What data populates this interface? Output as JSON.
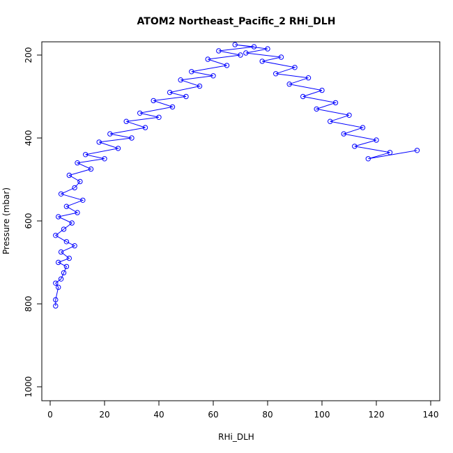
{
  "chart_data": {
    "type": "scatter",
    "title": "ATOM2 Northeast_Pacific_2 RHi_DLH",
    "xlabel": "RHi_DLH",
    "ylabel": "Pressure (mbar)",
    "xlim": [
      0,
      140
    ],
    "ylim": [
      1040,
      160
    ],
    "y_reversed": true,
    "grid": false,
    "legend": "none",
    "color": "#0000ff",
    "marker": "open-circle",
    "connected": true,
    "x_ticks": [
      0,
      20,
      40,
      60,
      80,
      100,
      120,
      140
    ],
    "x_tick_labels": [
      "0",
      "20",
      "40",
      "60",
      "80",
      "100",
      "120",
      "140"
    ],
    "y_ticks": [
      200,
      400,
      600,
      800,
      1000
    ],
    "y_tick_labels": [
      "200",
      "400",
      "600",
      "800",
      "1000"
    ],
    "series": [
      {
        "x": [
          2,
          2,
          3,
          2,
          4,
          5,
          6,
          3,
          7,
          4,
          9,
          6,
          2,
          5,
          8,
          3,
          10,
          6,
          12,
          4,
          9,
          11,
          7,
          15,
          10,
          20,
          13,
          25,
          18,
          30,
          22,
          35,
          28,
          40,
          33,
          45,
          38,
          50,
          44,
          55,
          48,
          60,
          52,
          65,
          58,
          70,
          62,
          75,
          68,
          80,
          72,
          85,
          78,
          90,
          83,
          95,
          88,
          100,
          93,
          105,
          98,
          110,
          103,
          115,
          108,
          120,
          112,
          125,
          117,
          135
        ],
        "y": [
          805,
          790,
          760,
          750,
          740,
          725,
          710,
          700,
          690,
          675,
          660,
          650,
          635,
          620,
          605,
          590,
          580,
          565,
          550,
          535,
          520,
          505,
          490,
          475,
          460,
          450,
          440,
          425,
          410,
          400,
          390,
          375,
          360,
          350,
          340,
          325,
          310,
          300,
          290,
          275,
          260,
          250,
          240,
          225,
          210,
          200,
          190,
          180,
          175,
          185,
          195,
          205,
          215,
          230,
          245,
          255,
          270,
          285,
          300,
          315,
          330,
          345,
          360,
          375,
          390,
          405,
          420,
          435,
          450,
          430
        ]
      }
    ]
  }
}
